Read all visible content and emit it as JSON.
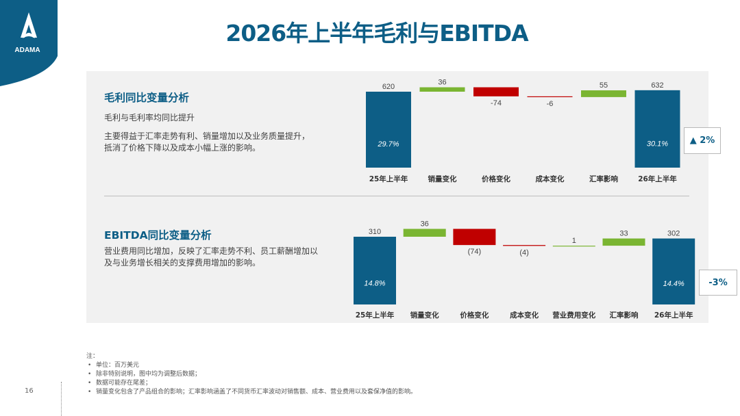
{
  "brand": {
    "name": "ADAMA",
    "color": "#0d5e86"
  },
  "page_title": "2026年上半年毛利与EBITDA",
  "colors": {
    "total": "#0d5e86",
    "increase": "#7ab532",
    "decrease": "#c00000"
  },
  "sections": [
    {
      "title": "毛利同比变量分析",
      "line1": "毛利与毛利率均同比提升",
      "line2": "主要得益于汇率走势有利、销量增加以及业务质量提升，",
      "line3": "抵消了价格下降以及成本小幅上涨的影响。",
      "delta_label": "▲ 2%"
    },
    {
      "title": "EBITDA同比变量分析",
      "line1": "营业费用同比增加，反映了汇率走势不利、员工薪酬增加以",
      "line2": "及与业务增长相关的支撑费用增加的影响。",
      "delta_label": "-3%"
    }
  ],
  "chart_data": [
    {
      "type": "bar",
      "subtype": "waterfall",
      "categories": [
        "25年上半年",
        "销量变化",
        "价格变化",
        "成本变化",
        "汇率影响",
        "26年上半年"
      ],
      "values": [
        620,
        36,
        -74,
        -6,
        55,
        632
      ],
      "value_labels": [
        "620",
        "36",
        "-74",
        "-6",
        "55",
        "632"
      ],
      "kinds": [
        "total",
        "increase",
        "decrease",
        "decrease",
        "increase",
        "total"
      ],
      "inner_labels": [
        "29.7%",
        "",
        "",
        "",
        "",
        "30.1%"
      ]
    },
    {
      "type": "bar",
      "subtype": "waterfall",
      "categories": [
        "25年上半年",
        "销量变化",
        "价格变化",
        "成本变化",
        "营业费用变化",
        "汇率影响",
        "26年上半年"
      ],
      "values": [
        310,
        36,
        -74,
        -4,
        1,
        33,
        302
      ],
      "value_labels": [
        "310",
        "36",
        "(74)",
        "(4)",
        "1",
        "33",
        "302"
      ],
      "kinds": [
        "total",
        "increase",
        "decrease",
        "decrease",
        "increase",
        "increase",
        "total"
      ],
      "inner_labels": [
        "14.8%",
        "",
        "",
        "",
        "",
        "",
        "14.4%"
      ]
    }
  ],
  "notes": {
    "heading": "注：",
    "items": [
      "单位：百万美元",
      "除非特别说明，图中均为调整后数据；",
      "数据可能存在尾差；",
      "销量变化包含了产品组合的影响；汇率影响涵盖了不同货币汇率波动对销售额、成本、营业费用以及套保净值的影响。"
    ]
  },
  "page_number": "16"
}
